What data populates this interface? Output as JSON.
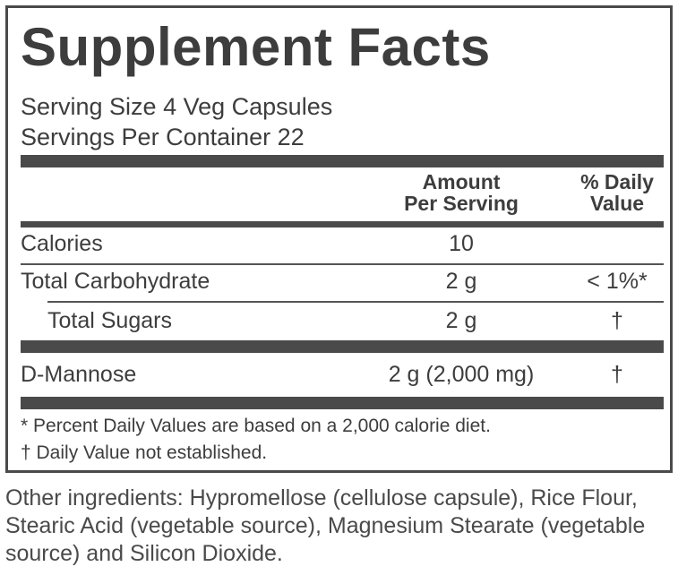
{
  "title": "Supplement Facts",
  "serving_size": "Serving Size 4 Veg Capsules",
  "servings_per_container": "Servings Per Container 22",
  "header": {
    "amount": [
      "Amount",
      "Per Serving"
    ],
    "daily_value": [
      "% Daily",
      "Value"
    ]
  },
  "rows": [
    {
      "name": "Calories",
      "amount": "10",
      "dv": ""
    },
    {
      "name": "Total Carbohydrate",
      "amount": "2 g",
      "dv": "< 1%*"
    },
    {
      "name": "Total Sugars",
      "amount": "2 g",
      "dv": "†"
    },
    {
      "name": "D-Mannose",
      "amount": "2 g (2,000 mg)",
      "dv": "†"
    }
  ],
  "footnotes": [
    "* Percent Daily Values are based on a 2,000 calorie diet.",
    "† Daily Value not established."
  ],
  "other_ingredients": "Other ingredients: Hypromellose (cellulose capsule), Rice Flour, Stearic Acid (vegetable source), Magnesium Stearate (vegetable source) and Silicon Dioxide."
}
